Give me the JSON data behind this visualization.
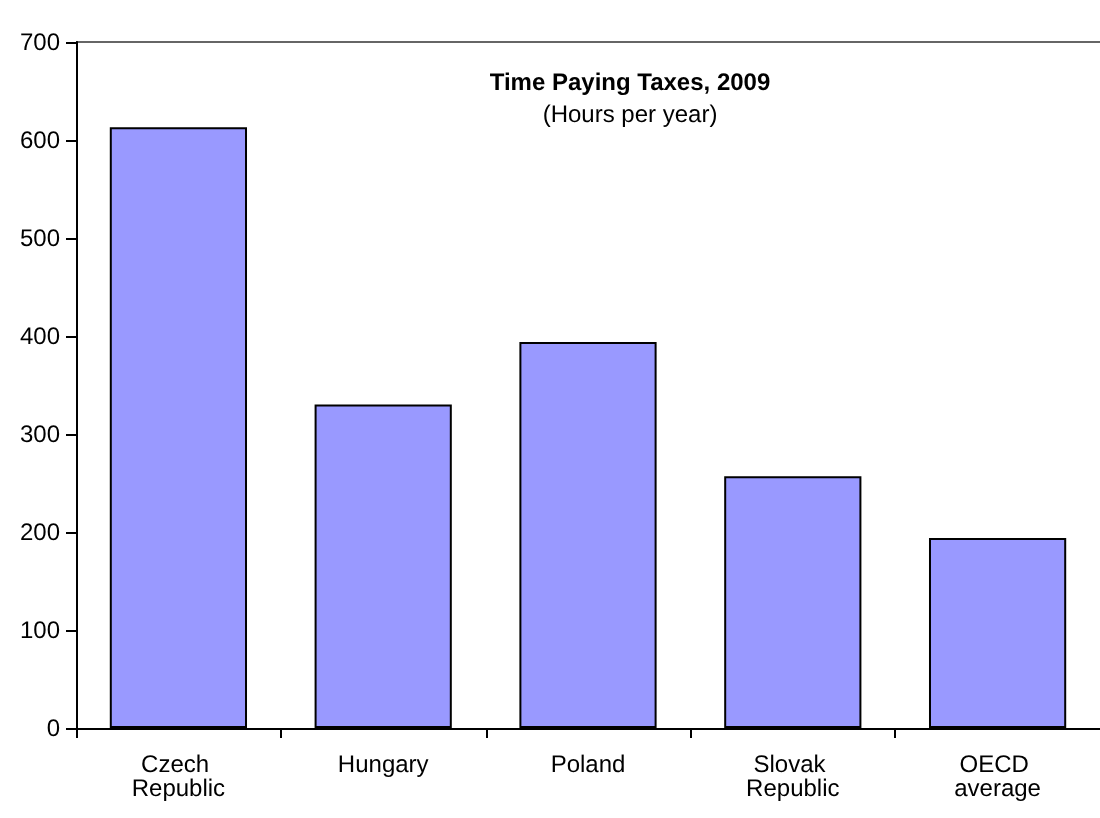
{
  "chart_data": {
    "type": "bar",
    "title": "Time Paying Taxes, 2009",
    "subtitle": "(Hours per year)",
    "categories": [
      "Czech Republic",
      "Hungary",
      "Poland",
      "Slovak Republic",
      "OECD average"
    ],
    "values": [
      613,
      330,
      394,
      257,
      194
    ],
    "color": "#9999ff",
    "ylim": [
      0,
      700
    ],
    "yticks": [
      0,
      100,
      200,
      300,
      400,
      500,
      600,
      700
    ]
  }
}
